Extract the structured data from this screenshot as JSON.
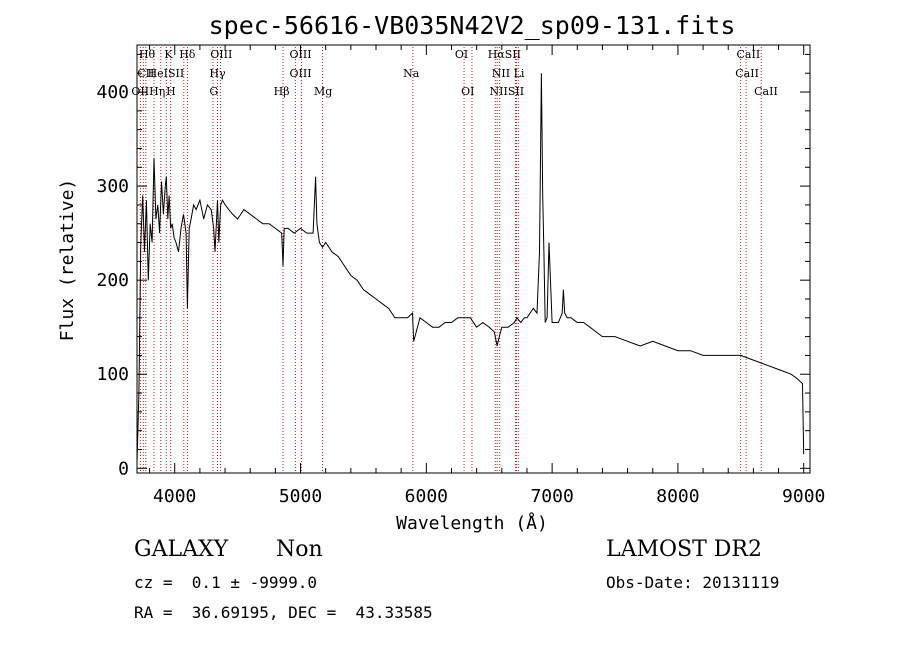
{
  "chart_data": {
    "type": "line",
    "title": "spec-56616-VB035N42V2_sp09-131.fits",
    "xlabel": "Wavelength (Å)",
    "ylabel": "Flux (relative)",
    "xlim": [
      3700,
      9050
    ],
    "ylim": [
      -5,
      450
    ],
    "xticks": [
      4000,
      5000,
      6000,
      7000,
      8000,
      9000
    ],
    "yticks": [
      0,
      100,
      200,
      300,
      400
    ],
    "grid": false,
    "legend": "none",
    "line_color": "#000000",
    "marker_color": "#b22222",
    "spectrum": {
      "x": [
        3700,
        3715,
        3730,
        3745,
        3760,
        3775,
        3790,
        3805,
        3820,
        3835,
        3850,
        3865,
        3880,
        3895,
        3910,
        3925,
        3933,
        3945,
        3955,
        3968,
        3980,
        3995,
        4010,
        4030,
        4050,
        4070,
        4090,
        4101,
        4115,
        4130,
        4150,
        4170,
        4200,
        4230,
        4260,
        4290,
        4310,
        4320,
        4340,
        4350,
        4365,
        4380,
        4400,
        4430,
        4460,
        4500,
        4550,
        4600,
        4650,
        4700,
        4750,
        4800,
        4850,
        4861,
        4870,
        4900,
        4950,
        5000,
        5050,
        5100,
        5120,
        5130,
        5150,
        5175,
        5200,
        5250,
        5300,
        5350,
        5400,
        5450,
        5500,
        5550,
        5600,
        5650,
        5700,
        5750,
        5800,
        5850,
        5890,
        5900,
        5950,
        6000,
        6050,
        6100,
        6150,
        6200,
        6250,
        6300,
        6350,
        6400,
        6450,
        6500,
        6540,
        6563,
        6580,
        6600,
        6650,
        6700,
        6720,
        6750,
        6780,
        6800,
        6850,
        6880,
        6900,
        6915,
        6925,
        6935,
        6945,
        6960,
        6975,
        7000,
        7050,
        7080,
        7090,
        7100,
        7120,
        7150,
        7200,
        7250,
        7300,
        7350,
        7400,
        7500,
        7600,
        7700,
        7800,
        7900,
        8000,
        8100,
        8200,
        8300,
        8400,
        8500,
        8600,
        8700,
        8800,
        8900,
        8950,
        8990,
        9000
      ],
      "y": [
        5,
        80,
        240,
        290,
        230,
        285,
        200,
        260,
        240,
        330,
        265,
        280,
        250,
        305,
        270,
        300,
        310,
        265,
        290,
        255,
        260,
        245,
        240,
        230,
        255,
        270,
        250,
        170,
        255,
        265,
        280,
        275,
        285,
        265,
        280,
        275,
        255,
        230,
        285,
        240,
        280,
        285,
        280,
        275,
        270,
        265,
        275,
        270,
        265,
        260,
        260,
        255,
        250,
        215,
        255,
        255,
        250,
        255,
        250,
        250,
        310,
        260,
        240,
        235,
        240,
        230,
        225,
        215,
        205,
        200,
        190,
        185,
        180,
        175,
        170,
        160,
        160,
        160,
        165,
        135,
        160,
        155,
        150,
        150,
        155,
        155,
        160,
        160,
        160,
        150,
        155,
        150,
        145,
        130,
        140,
        150,
        150,
        155,
        160,
        155,
        160,
        160,
        170,
        165,
        230,
        420,
        290,
        230,
        155,
        160,
        240,
        155,
        155,
        165,
        190,
        165,
        160,
        160,
        155,
        155,
        150,
        145,
        140,
        140,
        135,
        130,
        135,
        130,
        125,
        125,
        120,
        120,
        120,
        120,
        115,
        110,
        105,
        100,
        95,
        90,
        15
      ]
    },
    "lines": [
      {
        "x": 3727,
        "labels": [
          "OII"
        ]
      },
      {
        "x": 3750,
        "labels": [
          "Hθ",
          "CII"
        ]
      },
      {
        "x": 3770,
        "labels": [
          "Hη"
        ]
      },
      {
        "x": 3835,
        "labels": [
          "Hη"
        ]
      },
      {
        "x": 3889,
        "labels": [
          "HeI"
        ]
      },
      {
        "x": 3933,
        "labels": [
          "K"
        ]
      },
      {
        "x": 3968,
        "labels": [
          "H"
        ]
      },
      {
        "x": 4072,
        "labels": [
          "SII"
        ]
      },
      {
        "x": 4101,
        "labels": [
          "Hδ"
        ]
      },
      {
        "x": 4304,
        "labels": [
          "G"
        ]
      },
      {
        "x": 4340,
        "labels": [
          "Hγ"
        ]
      },
      {
        "x": 4363,
        "labels": [
          "OIII"
        ]
      },
      {
        "x": 4861,
        "labels": [
          "Hβ"
        ]
      },
      {
        "x": 4959,
        "labels": [
          "OIII"
        ]
      },
      {
        "x": 5007,
        "labels": [
          "OIII"
        ]
      },
      {
        "x": 5175,
        "labels": [
          "Mg"
        ]
      },
      {
        "x": 5893,
        "labels": [
          "Na"
        ]
      },
      {
        "x": 6300,
        "labels": [
          "OI"
        ]
      },
      {
        "x": 6363,
        "labels": [
          "OI"
        ]
      },
      {
        "x": 6548,
        "labels": [
          "NII"
        ]
      },
      {
        "x": 6563,
        "labels": [
          "Hα"
        ]
      },
      {
        "x": 6583,
        "labels": [
          "NII"
        ]
      },
      {
        "x": 6708,
        "labels": [
          "Li"
        ]
      },
      {
        "x": 6716,
        "labels": [
          "SII"
        ]
      },
      {
        "x": 6731,
        "labels": [
          "SII"
        ]
      },
      {
        "x": 8498,
        "labels": [
          "CaII"
        ]
      },
      {
        "x": 8542,
        "labels": [
          "CaII"
        ]
      },
      {
        "x": 8662,
        "labels": [
          "CaII"
        ]
      }
    ],
    "line_label_texts": [
      "Hθ",
      "K",
      "Hδ",
      "OIII",
      "OIII",
      "OI",
      "HαSII",
      "CaII",
      "CII",
      "HeISII",
      "Hγ",
      "OIII",
      "Na",
      "NII Li",
      "CaII",
      "OIIHη",
      "H",
      "G",
      "Hβ",
      "Mg",
      "OI",
      "NIISII",
      "CaII"
    ]
  },
  "info": {
    "object_class": "GALAXY",
    "subclass": "Non",
    "redshift_text": "cz =  0.1 ± -9999.0",
    "coords_text": "RA =  36.69195, DEC =  43.33585",
    "survey": "LAMOST DR2",
    "obs_date_text": "Obs-Date: 20131119"
  }
}
